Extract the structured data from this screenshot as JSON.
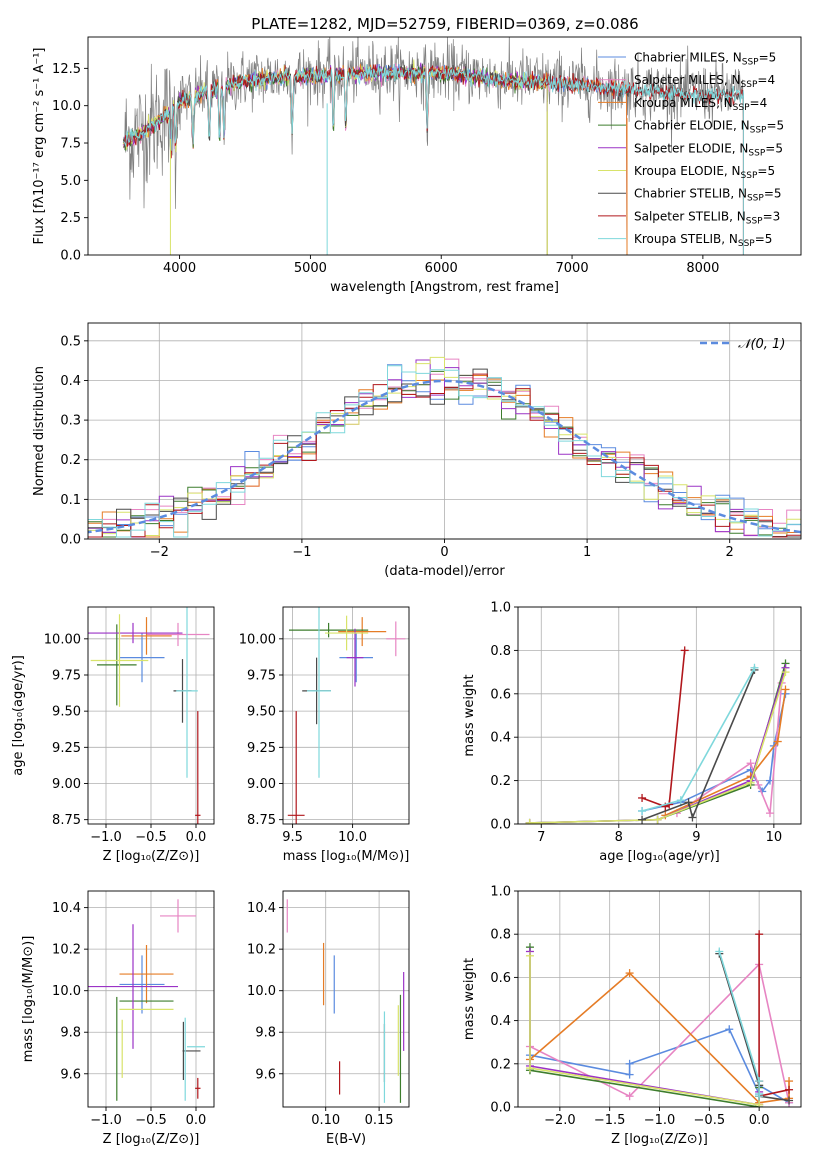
{
  "colors": {
    "Chabrier MILES": "#5b8bdf",
    "Salpeter MILES": "#e785c3",
    "Kroupa MILES": "#e57c26",
    "Chabrier ELODIE": "#3d7d2d",
    "Salpeter ELODIE": "#9b33c6",
    "Kroupa ELODIE": "#d8e36a",
    "Chabrier STELIB": "#4a4a4a",
    "Salpeter STELIB": "#b1171c",
    "Kroupa STELIB": "#7fd8dc",
    "gaussian": "#5b8bdf",
    "spectrum_data": "#808080"
  },
  "chart_data": [
    {
      "id": "spectrum",
      "type": "line",
      "title": "PLATE=1282, MJD=52759, FIBERID=0369, z=0.086",
      "xlabel": "wavelength [Angstrom, rest frame]",
      "ylabel": "Flux [fλ10⁻¹⁷ erg cm⁻² s⁻¹ A⁻¹]",
      "xlim": [
        3300,
        8750
      ],
      "ylim": [
        0,
        14.6
      ],
      "xticks": [
        4000,
        5000,
        6000,
        7000,
        8000
      ],
      "yticks": [
        0.0,
        2.5,
        5.0,
        7.5,
        10.0,
        12.5
      ],
      "grid": false,
      "legend": "upper right",
      "continuum": [
        [
          3570,
          7.6
        ],
        [
          3700,
          8.2
        ],
        [
          3900,
          9.5
        ],
        [
          4000,
          10.4
        ],
        [
          4200,
          11.0
        ],
        [
          4500,
          11.8
        ],
        [
          5000,
          12.1
        ],
        [
          5500,
          12.3
        ],
        [
          6000,
          12.3
        ],
        [
          6500,
          11.8
        ],
        [
          7000,
          11.5
        ],
        [
          7500,
          11.1
        ],
        [
          8000,
          10.8
        ],
        [
          8300,
          10.8
        ]
      ],
      "data_range": [
        3580,
        8310
      ],
      "series": [
        {
          "name": "Chabrier MILES",
          "nssp": 5,
          "range": [
            3570,
            7420
          ]
        },
        {
          "name": "Salpeter MILES",
          "nssp": 4,
          "range": [
            3570,
            7420
          ]
        },
        {
          "name": "Kroupa MILES",
          "nssp": 4,
          "range": [
            3570,
            7420
          ]
        },
        {
          "name": "Chabrier ELODIE",
          "nssp": 5,
          "range": [
            3570,
            6810
          ]
        },
        {
          "name": "Salpeter ELODIE",
          "nssp": 5,
          "range": [
            3570,
            6810
          ]
        },
        {
          "name": "Kroupa ELODIE",
          "nssp": 5,
          "range": [
            3570,
            6810
          ]
        },
        {
          "name": "Chabrier STELIB",
          "nssp": 5,
          "range": [
            3570,
            8310
          ]
        },
        {
          "name": "Salpeter STELIB",
          "nssp": 3,
          "range": [
            3570,
            8310
          ]
        },
        {
          "name": "Kroupa STELIB",
          "nssp": 5,
          "range": [
            3570,
            8310
          ]
        }
      ]
    },
    {
      "id": "residuals",
      "type": "line",
      "xlabel": "(data-model)/error",
      "ylabel": "Normed distribution",
      "xlim": [
        -2.5,
        2.5
      ],
      "ylim": [
        0,
        0.545
      ],
      "xticks": [
        -2,
        -1,
        0,
        1,
        2
      ],
      "yticks": [
        0.0,
        0.1,
        0.2,
        0.3,
        0.4,
        0.5
      ],
      "grid": true,
      "legend": "upper right",
      "gaussian_label": "𝒩(0, 1)",
      "bin_width": 0.1,
      "bins_from": -2.5
    },
    {
      "id": "age-vs-Z",
      "type": "scatter",
      "xlabel": "Z [log₁₀(Z/Z⊙)]",
      "ylabel": "age  [log₁₀(age/yr)]",
      "xlim": [
        -1.2,
        0.2
      ],
      "ylim": [
        8.72,
        10.22
      ],
      "xticks": [
        -1.0,
        -0.5,
        0.0
      ],
      "yticks": [
        8.75,
        9.0,
        9.25,
        9.5,
        9.75,
        10.0
      ],
      "grid": true,
      "points": [
        {
          "series": "Chabrier MILES",
          "x": -0.6,
          "xerr": 0.25,
          "y": 9.87,
          "yerr": 0.17
        },
        {
          "series": "Salpeter MILES",
          "x": -0.2,
          "xerr": 0.35,
          "y": 10.03,
          "yerr": 0.08
        },
        {
          "series": "Kroupa MILES",
          "x": -0.55,
          "xerr": 0.28,
          "y": 10.02,
          "yerr": 0.13
        },
        {
          "series": "Chabrier ELODIE",
          "x": -0.88,
          "xerr": 0.22,
          "y": 9.82,
          "yerr": 0.28
        },
        {
          "series": "Salpeter ELODIE",
          "x": -0.7,
          "xerr": 0.55,
          "y": 10.04,
          "yerr": 0.07
        },
        {
          "series": "Kroupa ELODIE",
          "x": -0.85,
          "xerr": 0.32,
          "y": 9.85,
          "yerr": 0.32
        },
        {
          "series": "Chabrier STELIB",
          "x": -0.15,
          "xerr": 0.1,
          "y": 9.64,
          "yerr": 0.22
        },
        {
          "series": "Salpeter STELIB",
          "x": 0.02,
          "xerr": 0.03,
          "y": 8.78,
          "yerr": 0.72
        },
        {
          "series": "Kroupa STELIB",
          "x": -0.1,
          "xerr": 0.12,
          "y": 9.64,
          "yerr": 0.6
        }
      ]
    },
    {
      "id": "age-vs-mass",
      "type": "scatter",
      "xlabel": "mass [log₁₀(M/M⊙)]",
      "ylabel": "",
      "xlim": [
        9.42,
        10.47
      ],
      "ylim": [
        8.72,
        10.22
      ],
      "xticks": [
        9.5,
        10.0
      ],
      "yticks": [
        8.75,
        9.0,
        9.25,
        9.5,
        9.75,
        10.0
      ],
      "grid": true,
      "points": [
        {
          "series": "Chabrier MILES",
          "x": 10.03,
          "xerr": 0.14,
          "y": 9.87,
          "yerr": 0.17
        },
        {
          "series": "Salpeter MILES",
          "x": 10.36,
          "xerr": 0.08,
          "y": 10.0,
          "yerr": 0.12
        },
        {
          "series": "Kroupa MILES",
          "x": 10.08,
          "xerr": 0.2,
          "y": 10.05,
          "yerr": 0.1
        },
        {
          "series": "Chabrier ELODIE",
          "x": 9.8,
          "xerr": 0.33,
          "y": 10.06,
          "yerr": 0.05
        },
        {
          "series": "Salpeter ELODIE",
          "x": 10.02,
          "xerr": 0.07,
          "y": 9.87,
          "yerr": 0.2
        },
        {
          "series": "Kroupa ELODIE",
          "x": 9.95,
          "xerr": 0.18,
          "y": 10.04,
          "yerr": 0.12
        },
        {
          "series": "Chabrier STELIB",
          "x": 9.7,
          "xerr": 0.12,
          "y": 9.64,
          "yerr": 0.23
        },
        {
          "series": "Salpeter STELIB",
          "x": 9.53,
          "xerr": 0.07,
          "y": 8.78,
          "yerr": 0.72
        },
        {
          "series": "Kroupa STELIB",
          "x": 9.72,
          "xerr": 0.1,
          "y": 9.64,
          "yerr": 0.6
        }
      ]
    },
    {
      "id": "weight-vs-age",
      "type": "line",
      "xlabel": "age  [log₁₀(age/yr)]",
      "ylabel": "mass weight",
      "xlim": [
        6.7,
        10.35
      ],
      "ylim": [
        0.0,
        1.0
      ],
      "xticks": [
        7,
        8,
        9,
        10
      ],
      "yticks": [
        0.0,
        0.2,
        0.4,
        0.6,
        0.8,
        1.0
      ],
      "grid": true,
      "series": [
        {
          "name": "Chabrier MILES",
          "x": [
            8.3,
            8.8,
            9.7,
            9.85,
            9.95,
            10.0,
            10.15
          ],
          "y": [
            0.06,
            0.1,
            0.25,
            0.15,
            0.2,
            0.36,
            0.6
          ]
        },
        {
          "name": "Salpeter MILES",
          "x": [
            8.75,
            9.7,
            9.8,
            9.95,
            10.1
          ],
          "y": [
            0.05,
            0.28,
            0.18,
            0.05,
            0.65
          ]
        },
        {
          "name": "Kroupa MILES",
          "x": [
            8.6,
            9.7,
            10.05,
            10.15
          ],
          "y": [
            0.04,
            0.22,
            0.38,
            0.62
          ]
        },
        {
          "name": "Chabrier ELODIE",
          "x": [
            6.85,
            8.5,
            9.7,
            10.15
          ],
          "y": [
            0.005,
            0.02,
            0.18,
            0.74
          ]
        },
        {
          "name": "Salpeter ELODIE",
          "x": [
            6.85,
            8.5,
            9.7,
            10.15
          ],
          "y": [
            0.005,
            0.02,
            0.2,
            0.72
          ]
        },
        {
          "name": "Kroupa ELODIE",
          "x": [
            6.85,
            8.5,
            9.7,
            10.15
          ],
          "y": [
            0.005,
            0.02,
            0.19,
            0.7
          ]
        },
        {
          "name": "Chabrier STELIB",
          "x": [
            8.3,
            8.9,
            8.95,
            9.75
          ],
          "y": [
            0.02,
            0.1,
            0.03,
            0.71
          ]
        },
        {
          "name": "Salpeter STELIB",
          "x": [
            8.3,
            8.6,
            8.65,
            8.85
          ],
          "y": [
            0.12,
            0.08,
            0.09,
            0.8
          ]
        },
        {
          "name": "Kroupa STELIB",
          "x": [
            8.3,
            8.8,
            9.75
          ],
          "y": [
            0.06,
            0.11,
            0.72
          ]
        }
      ]
    },
    {
      "id": "mass-vs-Z",
      "type": "scatter",
      "xlabel": "Z [log₁₀(Z/Z⊙)]",
      "ylabel": "mass [log₁₀(M/M⊙)]",
      "xlim": [
        -1.2,
        0.2
      ],
      "ylim": [
        9.44,
        10.48
      ],
      "xticks": [
        -1.0,
        -0.5,
        0.0
      ],
      "yticks": [
        9.6,
        9.8,
        10.0,
        10.2,
        10.4
      ],
      "grid": true,
      "points": [
        {
          "series": "Chabrier MILES",
          "x": -0.6,
          "xerr": 0.25,
          "y": 10.03,
          "yerr": 0.14
        },
        {
          "series": "Salpeter MILES",
          "x": -0.2,
          "xerr": 0.2,
          "y": 10.36,
          "yerr": 0.08
        },
        {
          "series": "Kroupa MILES",
          "x": -0.55,
          "xerr": 0.3,
          "y": 10.08,
          "yerr": 0.14
        },
        {
          "series": "Chabrier ELODIE",
          "x": -0.55,
          "xerr": 0.3,
          "y": 9.95,
          "yerr": 0.0
        },
        {
          "series": "Salpeter ELODIE",
          "x": -0.7,
          "xerr": 0.5,
          "y": 10.02,
          "yerr": 0.3
        },
        {
          "series": "Kroupa ELODIE",
          "x": -0.55,
          "xerr": 0.3,
          "y": 9.91,
          "yerr": 0.0
        },
        {
          "series": "Chabrier STELIB",
          "x": -0.05,
          "xerr": 0.1,
          "y": 9.71,
          "yerr": 0.0
        },
        {
          "series": "Salpeter STELIB",
          "x": 0.02,
          "xerr": 0.03,
          "y": 9.53,
          "yerr": 0.05
        },
        {
          "series": "Kroupa STELIB",
          "x": 0.0,
          "xerr": 0.1,
          "y": 9.73,
          "yerr": 0.0
        },
        {
          "series": "Chabrier ELODIE",
          "x": -0.88,
          "xerr": 0.0,
          "y": 9.72,
          "yerr": 0.25
        },
        {
          "series": "Kroupa ELODIE",
          "x": -0.82,
          "xerr": 0.0,
          "y": 9.72,
          "yerr": 0.14
        },
        {
          "series": "Chabrier STELIB",
          "x": -0.14,
          "xerr": 0.0,
          "y": 9.71,
          "yerr": 0.14
        },
        {
          "series": "Kroupa STELIB",
          "x": -0.12,
          "xerr": 0.0,
          "y": 9.67,
          "yerr": 0.2
        }
      ]
    },
    {
      "id": "mass-vs-EBV",
      "type": "scatter",
      "xlabel": "E(B-V)",
      "ylabel": "",
      "xlim": [
        0.06,
        0.178
      ],
      "ylim": [
        9.44,
        10.48
      ],
      "xticks": [
        0.05,
        0.1,
        0.15
      ],
      "yticks": [
        9.6,
        9.8,
        10.0,
        10.2,
        10.4
      ],
      "grid": true,
      "points": [
        {
          "series": "Chabrier MILES",
          "x": 0.108,
          "xerr": 0.0,
          "y": 10.03,
          "yerr": 0.14
        },
        {
          "series": "Salpeter MILES",
          "x": 0.064,
          "xerr": 0.0,
          "y": 10.36,
          "yerr": 0.08
        },
        {
          "series": "Kroupa MILES",
          "x": 0.098,
          "xerr": 0.0,
          "y": 10.08,
          "yerr": 0.15
        },
        {
          "series": "Chabrier ELODIE",
          "x": 0.17,
          "xerr": 0.0,
          "y": 9.72,
          "yerr": 0.26
        },
        {
          "series": "Salpeter ELODIE",
          "x": 0.173,
          "xerr": 0.0,
          "y": 9.9,
          "yerr": 0.19
        },
        {
          "series": "Kroupa ELODIE",
          "x": 0.168,
          "xerr": 0.0,
          "y": 9.76,
          "yerr": 0.17
        },
        {
          "series": "Chabrier STELIB",
          "x": 0.155,
          "xerr": 0.0,
          "y": 9.7,
          "yerr": 0.14
        },
        {
          "series": "Salpeter STELIB",
          "x": 0.113,
          "xerr": 0.0,
          "y": 9.58,
          "yerr": 0.08
        },
        {
          "series": "Kroupa STELIB",
          "x": 0.155,
          "xerr": 0.0,
          "y": 9.68,
          "yerr": 0.22
        }
      ]
    },
    {
      "id": "weight-vs-Z",
      "type": "line",
      "xlabel": "Z [log₁₀(Z/Z⊙)]",
      "ylabel": "mass weight",
      "xlim": [
        -2.42,
        0.42
      ],
      "ylim": [
        0.0,
        1.0
      ],
      "xticks": [
        -2.0,
        -1.5,
        -1.0,
        -0.5,
        0.0
      ],
      "yticks": [
        0.0,
        0.2,
        0.4,
        0.6,
        0.8,
        1.0
      ],
      "grid": true,
      "series": [
        {
          "name": "Chabrier MILES",
          "x": [
            -2.3,
            -1.3,
            -1.3,
            -0.3,
            0.0,
            0.0,
            0.3
          ],
          "y": [
            0.24,
            0.15,
            0.2,
            0.36,
            0.06,
            0.1,
            0.02
          ]
        },
        {
          "name": "Salpeter MILES",
          "x": [
            -2.3,
            -1.3,
            0.0,
            0.3
          ],
          "y": [
            0.28,
            0.05,
            0.66,
            0.02
          ]
        },
        {
          "name": "Kroupa MILES",
          "x": [
            -2.3,
            -1.3,
            0.0,
            0.3,
            0.3
          ],
          "y": [
            0.22,
            0.62,
            0.02,
            0.04,
            0.12
          ]
        },
        {
          "name": "Chabrier ELODIE",
          "x": [
            -2.3,
            -2.3,
            0.0,
            0.0
          ],
          "y": [
            0.74,
            0.17,
            0.0,
            0.09
          ]
        },
        {
          "name": "Salpeter ELODIE",
          "x": [
            -2.3,
            -2.3,
            0.0,
            0.0
          ],
          "y": [
            0.72,
            0.19,
            0.01,
            0.07
          ]
        },
        {
          "name": "Kroupa ELODIE",
          "x": [
            -2.3,
            -2.3,
            0.0,
            0.0
          ],
          "y": [
            0.7,
            0.18,
            0.01,
            0.1
          ]
        },
        {
          "name": "Chabrier STELIB",
          "x": [
            -0.4,
            0.0,
            0.0,
            0.3
          ],
          "y": [
            0.71,
            0.1,
            0.05,
            0.03
          ]
        },
        {
          "name": "Salpeter STELIB",
          "x": [
            0.0,
            0.0,
            0.0,
            0.3
          ],
          "y": [
            0.8,
            0.12,
            0.05,
            0.08
          ]
        },
        {
          "name": "Kroupa STELIB",
          "x": [
            -0.4,
            0.0,
            0.0,
            0.0
          ],
          "y": [
            0.72,
            0.12,
            0.06,
            0.05
          ]
        }
      ]
    }
  ]
}
